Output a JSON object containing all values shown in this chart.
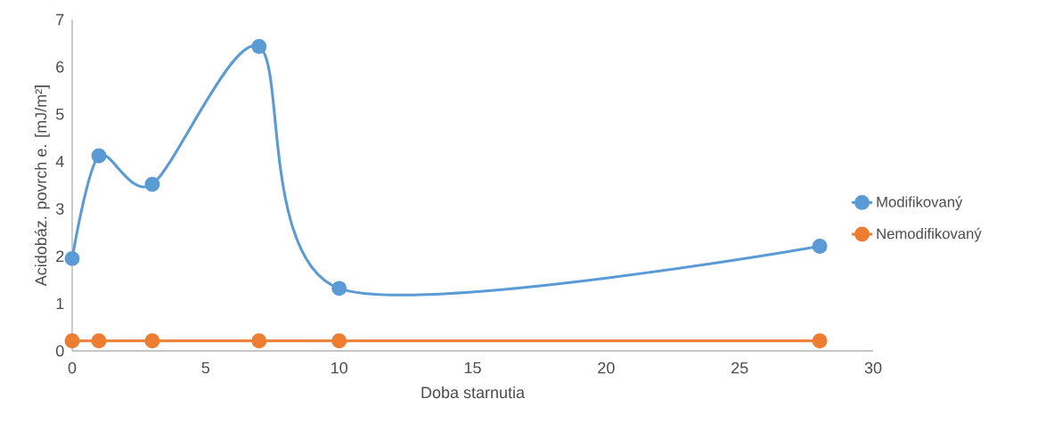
{
  "chart_data": {
    "type": "line",
    "xlabel": "Doba starnutia",
    "ylabel": "Acidobáz. povrch e. [mJ/m²]",
    "x": [
      0,
      1,
      3,
      7,
      10,
      28
    ],
    "series": [
      {
        "name": "Modifikovaný",
        "color": "#5b9bd5",
        "values": [
          1.95,
          4.12,
          3.52,
          6.43,
          1.32,
          2.21
        ]
      },
      {
        "name": "Nemodifikovaný",
        "color": "#ed7d31",
        "values": [
          0.21,
          0.21,
          0.21,
          0.21,
          0.21,
          0.21
        ]
      }
    ],
    "xlim": [
      0,
      30
    ],
    "xticks": [
      0,
      5,
      10,
      15,
      20,
      25,
      30
    ],
    "ylim": [
      0,
      7
    ],
    "yticks": [
      0,
      1,
      2,
      3,
      4,
      5,
      6,
      7
    ],
    "grid": false,
    "legend": "right",
    "marker": "circle",
    "line_style": "solid"
  }
}
